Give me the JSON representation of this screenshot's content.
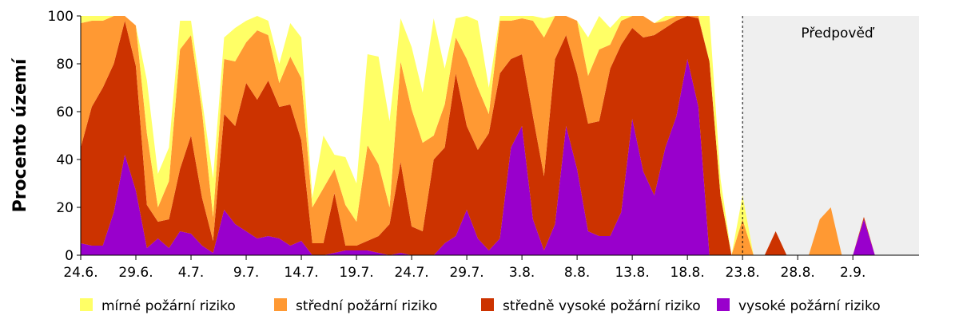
{
  "chart_data": {
    "type": "area",
    "stacked": true,
    "title": "",
    "xlabel": "",
    "ylabel": "Procento území",
    "ylim": [
      0,
      100
    ],
    "yticks": [
      0,
      20,
      40,
      60,
      80,
      100
    ],
    "x_tick_labels": [
      "24.6.",
      "29.6.",
      "4.7.",
      "9.7.",
      "14.7.",
      "19.7.",
      "24.7.",
      "29.7.",
      "3.8.",
      "8.8.",
      "13.8.",
      "18.8.",
      "23.8.",
      "28.8.",
      "2.9."
    ],
    "x_tick_step_days": 5,
    "x_start": "24.6.",
    "x_end": "2.9.",
    "grid": false,
    "legend_position": "bottom",
    "forecast_annotation": {
      "label": "Předpověď",
      "from": "23.8.",
      "to": "2.9."
    },
    "series": [
      {
        "name": "vysoké požární riziko",
        "color": "#9900cc",
        "values": [
          5,
          4,
          4,
          18,
          42,
          27,
          3,
          7,
          3,
          10,
          9,
          4,
          1,
          19,
          13,
          10,
          7,
          8,
          7,
          4,
          6,
          0,
          0,
          1,
          2,
          2,
          2,
          1,
          0,
          1,
          0,
          0,
          0,
          5,
          8,
          19,
          7,
          2,
          7,
          45,
          54,
          15,
          2,
          13,
          54,
          36,
          10,
          8,
          8,
          18,
          57,
          35,
          25,
          45,
          58,
          82,
          62,
          0,
          0,
          0,
          0,
          0,
          0,
          0,
          0,
          0,
          0,
          0,
          0,
          0,
          0,
          15,
          0,
          0,
          0,
          0,
          0
        ]
      },
      {
        "name": "středně vysoké požární riziko",
        "color": "#cc3300",
        "values": [
          40,
          58,
          66,
          62,
          56,
          52,
          18,
          7,
          12,
          26,
          41,
          20,
          5,
          40,
          41,
          62,
          58,
          65,
          55,
          59,
          42,
          5,
          5,
          25,
          2,
          2,
          4,
          7,
          13,
          38,
          12,
          10,
          40,
          40,
          68,
          35,
          37,
          49,
          69,
          37,
          30,
          43,
          31,
          69,
          38,
          40,
          45,
          48,
          70,
          70,
          38,
          56,
          67,
          50,
          40,
          18,
          37,
          81,
          25,
          0,
          0,
          0,
          0,
          10,
          0,
          0,
          0,
          0,
          0,
          0,
          0,
          1,
          0,
          0,
          0,
          0,
          0
        ]
      },
      {
        "name": "střední požární riziko",
        "color": "#ff9933",
        "values": [
          52,
          36,
          28,
          20,
          2,
          17,
          30,
          6,
          16,
          50,
          42,
          36,
          10,
          23,
          27,
          17,
          29,
          19,
          10,
          20,
          26,
          15,
          23,
          10,
          17,
          10,
          40,
          30,
          7,
          42,
          49,
          37,
          10,
          18,
          15,
          28,
          26,
          8,
          22,
          16,
          15,
          40,
          58,
          18,
          8,
          22,
          20,
          30,
          10,
          10,
          5,
          9,
          5,
          3,
          2,
          0,
          1,
          0,
          0,
          0,
          15,
          0,
          0,
          0,
          0,
          0,
          0,
          15,
          20,
          0,
          0,
          0,
          0,
          0,
          0,
          0,
          0
        ]
      },
      {
        "name": "mírné požární riziko",
        "color": "#ffff66",
        "values": [
          3,
          2,
          2,
          0,
          0,
          0,
          22,
          14,
          14,
          12,
          6,
          5,
          16,
          9,
          14,
          9,
          6,
          6,
          8,
          14,
          17,
          4,
          22,
          6,
          20,
          16,
          38,
          45,
          36,
          18,
          26,
          21,
          49,
          15,
          8,
          18,
          28,
          11,
          2,
          2,
          1,
          2,
          8,
          0,
          0,
          0,
          16,
          14,
          7,
          2,
          0,
          0,
          0,
          2,
          0,
          0,
          0,
          19,
          7,
          0,
          10,
          0,
          0,
          0,
          0,
          0,
          0,
          0,
          0,
          0,
          0,
          0,
          0,
          0,
          0,
          0,
          0
        ]
      }
    ]
  }
}
